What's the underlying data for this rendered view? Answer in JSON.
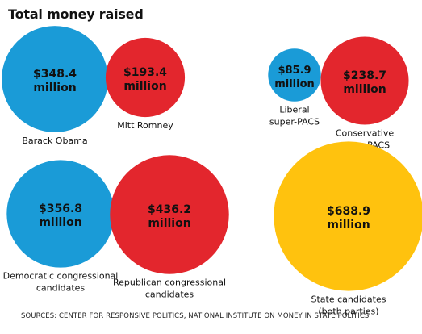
{
  "page": {
    "title": "Total money raised",
    "source": "SOURCES: CENTER FOR RESPONSIVE POLITICS, NATIONAL INSTITUTE ON MONEY IN STATE POLITICS"
  },
  "colors": {
    "democratic": "#1a9bd7",
    "republican": "#e3262d",
    "state": "#ffc20e"
  },
  "chart_data": {
    "type": "bubble",
    "title": "Total money raised",
    "unit": "million",
    "bubbles": [
      {
        "value_label": "$348.4",
        "unit_label": "million",
        "value": 348.4,
        "label": [
          "Barack Obama"
        ],
        "color": "democratic"
      },
      {
        "value_label": "$193.4",
        "unit_label": "million",
        "value": 193.4,
        "label": [
          "Mitt Romney"
        ],
        "color": "republican"
      },
      {
        "value_label": "$85.9",
        "unit_label": "million",
        "value": 85.9,
        "label": [
          "Liberal",
          "super-PACS"
        ],
        "color": "democratic"
      },
      {
        "value_label": "$238.7",
        "unit_label": "million",
        "value": 238.7,
        "label": [
          "Conservative",
          "super-PACS"
        ],
        "color": "republican"
      },
      {
        "value_label": "$356.8",
        "unit_label": "million",
        "value": 356.8,
        "label": [
          "Democratic congressional",
          "candidates"
        ],
        "color": "democratic"
      },
      {
        "value_label": "$436.2",
        "unit_label": "million",
        "value": 436.2,
        "label": [
          "Republican congressional",
          "candidates"
        ],
        "color": "republican"
      },
      {
        "value_label": "$688.9",
        "unit_label": "million",
        "value": 688.9,
        "label": [
          "State candidates",
          "(both parties)"
        ],
        "color": "state"
      }
    ]
  }
}
